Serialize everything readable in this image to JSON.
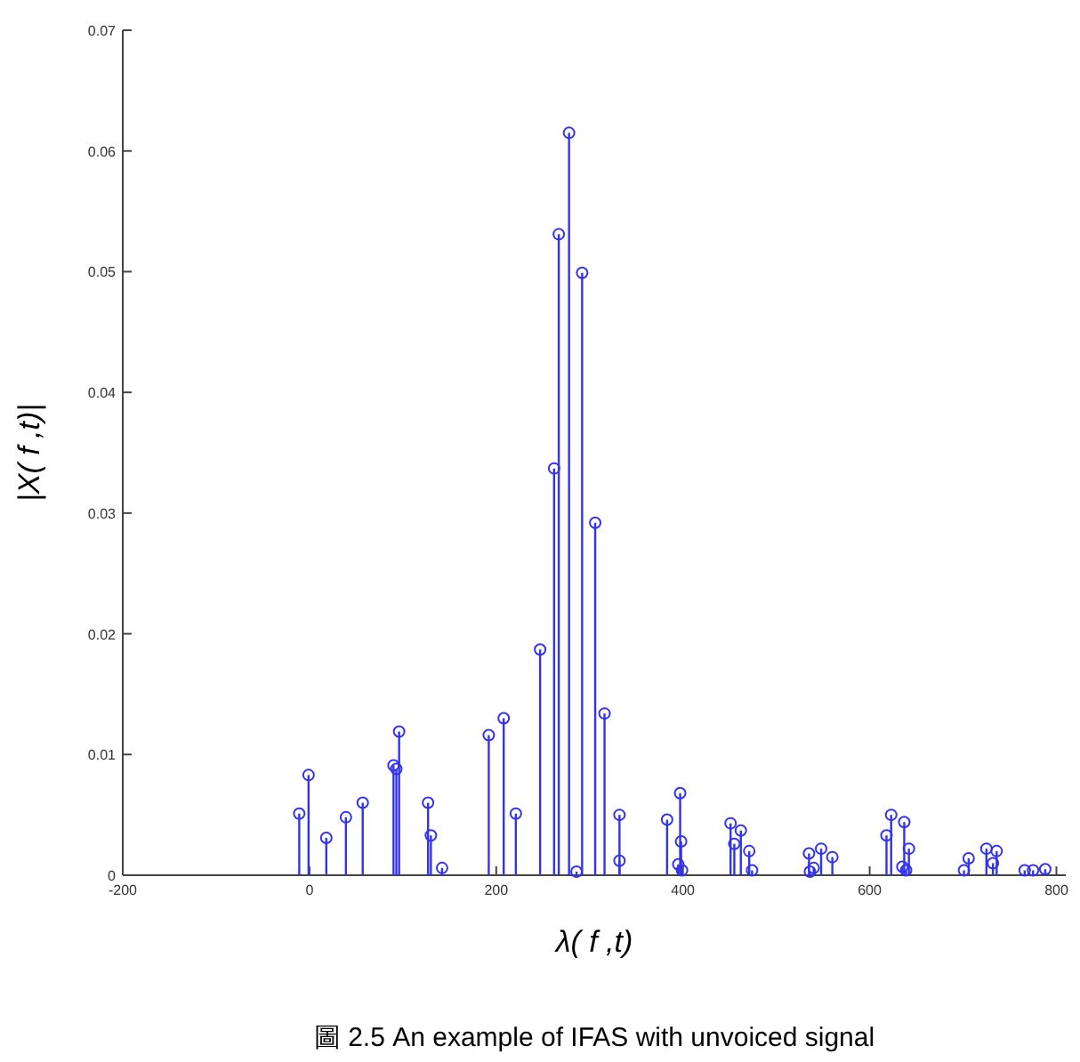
{
  "chart_data": {
    "type": "lollipop",
    "xlabel": "λ( f ,t)",
    "ylabel": "|X( f ,t)|",
    "annotations": [
      "圖 2.5 An example of IFAS with unvoiced signal"
    ],
    "xlim": [
      -200,
      810
    ],
    "ylim": [
      0,
      0.07
    ],
    "xticks": [
      -200,
      0,
      200,
      400,
      600,
      800
    ],
    "yticks": [
      0,
      0.01,
      0.02,
      0.03,
      0.04,
      0.05,
      0.06,
      0.07
    ],
    "grid": false,
    "marker": "circle",
    "series": [
      {
        "color": "#3333ee",
        "x": [
          -11,
          -1,
          18,
          39,
          57,
          90,
          93,
          96,
          127,
          130,
          142,
          192,
          208,
          221,
          247,
          262,
          267,
          278,
          286,
          292,
          306,
          316,
          332,
          332,
          383,
          397,
          398,
          395,
          399,
          451,
          455,
          462,
          471,
          474,
          535,
          536,
          540,
          548,
          560,
          618,
          623,
          637,
          635,
          639,
          642,
          701,
          706,
          725,
          732,
          736,
          766,
          775,
          788
        ],
        "values": [
          0.0051,
          0.0083,
          0.0031,
          0.0048,
          0.006,
          0.0091,
          0.0088,
          0.0119,
          0.006,
          0.0033,
          0.0006,
          0.0116,
          0.013,
          0.0051,
          0.0187,
          0.0337,
          0.0531,
          0.0615,
          0.0003,
          0.0499,
          0.0292,
          0.0134,
          0.005,
          0.0012,
          0.0046,
          0.0068,
          0.0028,
          0.0009,
          0.0004,
          0.0043,
          0.0026,
          0.0037,
          0.002,
          0.0004,
          0.0018,
          0.0003,
          0.0006,
          0.0022,
          0.0015,
          0.0033,
          0.005,
          0.0044,
          0.0007,
          0.0004,
          0.0022,
          0.0004,
          0.0014,
          0.0022,
          0.001,
          0.002,
          0.0004,
          0.0004,
          0.0005
        ]
      }
    ]
  }
}
